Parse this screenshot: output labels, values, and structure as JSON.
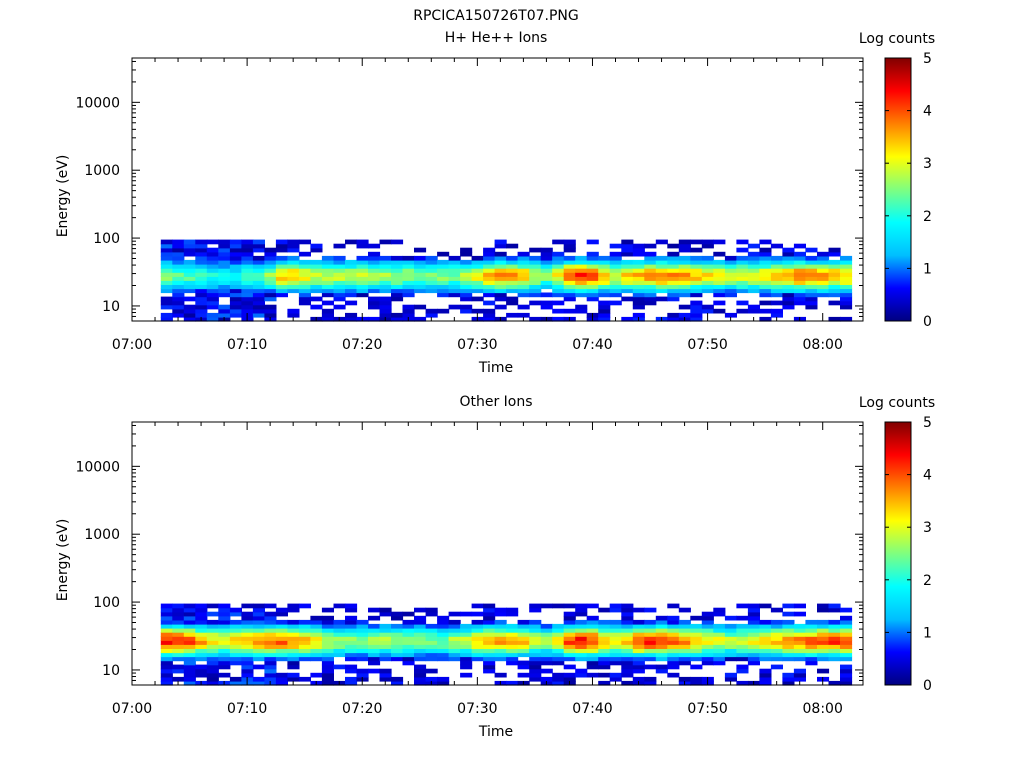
{
  "page": {
    "title": "RPCICA150726T07.PNG"
  },
  "colormap": {
    "name": "jet",
    "stops": [
      "#000080",
      "#0000ff",
      "#00bfff",
      "#00ffff",
      "#7fff7f",
      "#ffff00",
      "#ff8000",
      "#ff0000",
      "#800000"
    ]
  },
  "chart_data": [
    {
      "type": "heatmap",
      "title": "H+ He++ Ions",
      "xlabel": "Time",
      "ylabel": "Energy (eV)",
      "x_ticks": [
        "07:00",
        "07:10",
        "07:20",
        "07:30",
        "07:40",
        "07:50",
        "08:00"
      ],
      "x_tick_minutes": [
        0,
        10,
        20,
        30,
        40,
        50,
        60
      ],
      "xlim_minutes": [
        0,
        63.5
      ],
      "y_scale": "log",
      "y_ticks": [
        "10",
        "100",
        "1000",
        "10000"
      ],
      "y_tick_values": [
        10,
        100,
        1000,
        10000
      ],
      "ylim": [
        6,
        45000
      ],
      "data_time_range_minutes": [
        2.5,
        62.5
      ],
      "data_energy_range_eV": [
        6,
        95
      ],
      "colorbar": {
        "label": "Log counts",
        "range": [
          0,
          5
        ],
        "ticks": [
          "0",
          "1",
          "2",
          "3",
          "4",
          "5"
        ]
      },
      "band_peak_energy_eV": 28,
      "band_peak_log_counts": [
        {
          "time_min": 3,
          "value": 2.6
        },
        {
          "time_min": 6,
          "value": 2.1
        },
        {
          "time_min": 9,
          "value": 1.8
        },
        {
          "time_min": 12,
          "value": 2.6
        },
        {
          "time_min": 13.5,
          "value": 3.6
        },
        {
          "time_min": 16,
          "value": 2.8
        },
        {
          "time_min": 20,
          "value": 2.8
        },
        {
          "time_min": 25,
          "value": 2.6
        },
        {
          "time_min": 28,
          "value": 2.5
        },
        {
          "time_min": 32.5,
          "value": 3.8
        },
        {
          "time_min": 36,
          "value": 2.5
        },
        {
          "time_min": 39,
          "value": 4.3
        },
        {
          "time_min": 42,
          "value": 3.1
        },
        {
          "time_min": 45.5,
          "value": 3.8
        },
        {
          "time_min": 47.5,
          "value": 3.7
        },
        {
          "time_min": 52,
          "value": 2.9
        },
        {
          "time_min": 55.5,
          "value": 3.3
        },
        {
          "time_min": 58,
          "value": 3.9
        },
        {
          "time_min": 62,
          "value": 3.4
        }
      ]
    },
    {
      "type": "heatmap",
      "title": "Other Ions",
      "xlabel": "Time",
      "ylabel": "Energy (eV)",
      "x_ticks": [
        "07:00",
        "07:10",
        "07:20",
        "07:30",
        "07:40",
        "07:50",
        "08:00"
      ],
      "x_tick_minutes": [
        0,
        10,
        20,
        30,
        40,
        50,
        60
      ],
      "xlim_minutes": [
        0,
        63.5
      ],
      "y_scale": "log",
      "y_ticks": [
        "10",
        "100",
        "1000",
        "10000"
      ],
      "y_tick_values": [
        10,
        100,
        1000,
        10000
      ],
      "ylim": [
        6,
        45000
      ],
      "data_time_range_minutes": [
        2.5,
        62.5
      ],
      "data_energy_range_eV": [
        6,
        95
      ],
      "colorbar": {
        "label": "Log counts",
        "range": [
          0,
          5
        ],
        "ticks": [
          "0",
          "1",
          "2",
          "3",
          "4",
          "5"
        ]
      },
      "band_peak_energy_eV": 27,
      "band_peak_log_counts": [
        {
          "time_min": 4,
          "value": 4.3
        },
        {
          "time_min": 7.5,
          "value": 3.0
        },
        {
          "time_min": 11,
          "value": 3.8
        },
        {
          "time_min": 13.5,
          "value": 3.9
        },
        {
          "time_min": 18,
          "value": 2.6
        },
        {
          "time_min": 22,
          "value": 2.7
        },
        {
          "time_min": 27,
          "value": 2.5
        },
        {
          "time_min": 32.5,
          "value": 3.7
        },
        {
          "time_min": 36,
          "value": 2.6
        },
        {
          "time_min": 39,
          "value": 4.4
        },
        {
          "time_min": 42,
          "value": 3.2
        },
        {
          "time_min": 45.5,
          "value": 4.4
        },
        {
          "time_min": 47.5,
          "value": 3.8
        },
        {
          "time_min": 52,
          "value": 2.8
        },
        {
          "time_min": 55.5,
          "value": 3.4
        },
        {
          "time_min": 58,
          "value": 3.8
        },
        {
          "time_min": 62,
          "value": 4.2
        }
      ]
    }
  ]
}
